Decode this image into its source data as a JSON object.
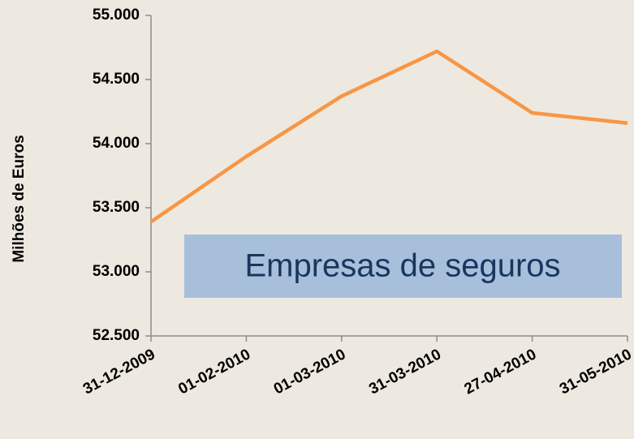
{
  "chart_data": {
    "type": "line",
    "y_axis_label": "Milhões de Euros",
    "annotation": "Empresas de seguros",
    "categories": [
      "31-12-2009",
      "01-02-2010",
      "01-03-2010",
      "31-03-2010",
      "27-04-2010",
      "31-05-2010"
    ],
    "series": [
      {
        "name": "Empresas de seguros",
        "color": "#f79646",
        "values": [
          53390,
          53900,
          54370,
          54720,
          54240,
          54160
        ]
      }
    ],
    "ylim": [
      52500,
      55000
    ],
    "yticks": [
      {
        "value": 52500,
        "label": "52.500"
      },
      {
        "value": 53000,
        "label": "53.000"
      },
      {
        "value": 53500,
        "label": "53.500"
      },
      {
        "value": 54000,
        "label": "54.000"
      },
      {
        "value": 54500,
        "label": "54.500"
      },
      {
        "value": 55000,
        "label": "55.000"
      }
    ],
    "grid": false
  }
}
